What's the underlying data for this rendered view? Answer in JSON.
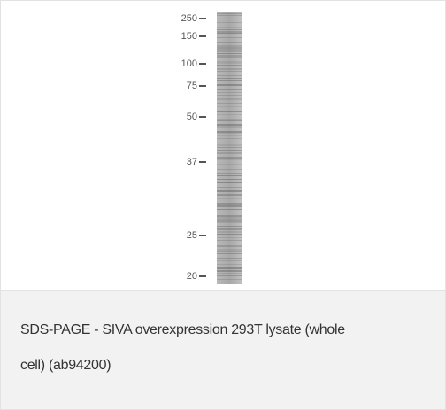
{
  "figure": {
    "markers": [
      "250",
      "150",
      "100",
      "75",
      "50",
      "37",
      "25",
      "20"
    ]
  },
  "caption": "SDS-PAGE - SIVA overexpression 293T lysate (whole cell) (ab94200)"
}
